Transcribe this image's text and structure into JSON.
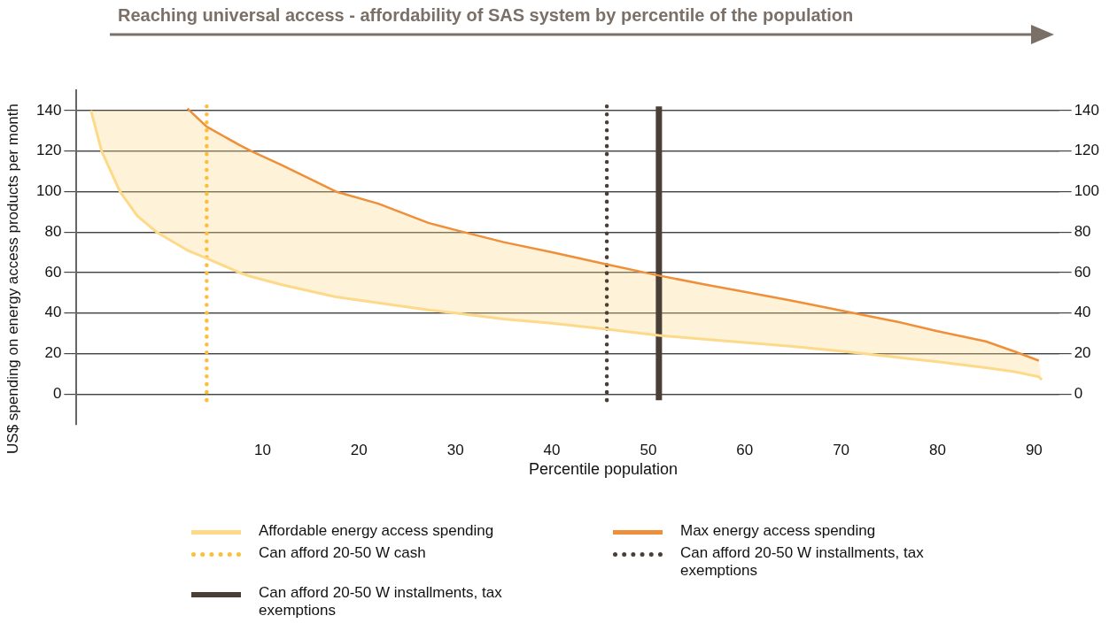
{
  "chart_data": {
    "type": "line",
    "title": "Reaching universal access - affordability of SAS system by percentile of the population",
    "xlabel": "Percentile population",
    "ylabel": "US$ spending on energy access products per month",
    "xlim": [
      -9.3,
      92.6
    ],
    "xticks": [
      10,
      20,
      30,
      40,
      50,
      60,
      70,
      80,
      90
    ],
    "ylim": [
      -15,
      150
    ],
    "yticks": [
      0,
      20,
      40,
      60,
      80,
      100,
      120,
      140
    ],
    "y2lim": [
      -15,
      150
    ],
    "y2ticks": [
      0,
      20,
      40,
      60,
      80,
      100,
      120,
      140
    ],
    "grid": "y",
    "legend": "bottom",
    "marker": "none",
    "series": [
      {
        "name": "Affordable energy access spending",
        "color": "#fdd98a",
        "x": [
          -7.8,
          -6.7,
          -4.8,
          -3,
          -1,
          2.2,
          4.2,
          7.6,
          8.8,
          12,
          17.6,
          22,
          27.2,
          30,
          35,
          40,
          45.7,
          51.1,
          56,
          60,
          65,
          71.3,
          76,
          80,
          85,
          88,
          90.5,
          90.8
        ],
        "values": [
          140,
          120,
          100,
          88,
          80,
          71,
          67,
          60,
          58,
          54,
          48,
          45,
          41.5,
          40,
          37,
          35,
          32,
          29,
          27,
          25.5,
          23.5,
          20.5,
          18,
          16,
          13,
          11,
          8.5,
          7
        ],
        "lower": [
          140,
          120,
          100,
          88,
          80,
          71,
          67,
          60,
          58,
          54,
          48,
          45,
          41.5,
          40,
          37,
          35,
          32,
          29,
          27,
          25.5,
          23.5,
          20.5,
          18,
          16,
          13,
          11,
          8.5,
          7
        ],
        "upper": [
          140,
          140,
          140,
          140,
          140,
          140,
          132,
          123,
          120,
          113,
          100,
          94,
          84.5,
          81,
          75,
          70,
          64,
          58.5,
          54,
          50.5,
          46,
          40,
          35.5,
          31,
          26,
          21,
          16.5,
          7
        ],
        "line_style": "solid"
      },
      {
        "name": "Max energy access spending",
        "color": "#ef8f3a",
        "x": [
          2.2,
          4.2,
          7.6,
          8.8,
          12,
          17.6,
          22,
          27.2,
          30,
          35,
          40,
          45.7,
          51.1,
          56,
          60,
          65,
          71.3,
          76,
          80,
          85,
          88,
          90.5
        ],
        "values": [
          141,
          132,
          123,
          120,
          113,
          100,
          94,
          84.5,
          81,
          75,
          70,
          64,
          58.5,
          54,
          50.5,
          46,
          40,
          35.5,
          31,
          26,
          21,
          16.5
        ],
        "line_style": "solid"
      },
      {
        "name": "Can afford 20-50 W cash",
        "color": "#fcbf36",
        "x": [
          4.2,
          4.2
        ],
        "values": [
          -3,
          142
        ],
        "line_style": "dotted"
      },
      {
        "name": "Can afford 20-50 W installments, tax exemptions",
        "color": "#4a3f36",
        "x": [
          45.7,
          45.7
        ],
        "values": [
          -3,
          142
        ],
        "line_style": "dotted"
      },
      {
        "name": "Can afford 20-50 W installments, tax exemptions",
        "color": "#4a3f36",
        "x": [
          51.1,
          51.1
        ],
        "values": [
          -3,
          142
        ],
        "line_style": "solid"
      }
    ]
  }
}
